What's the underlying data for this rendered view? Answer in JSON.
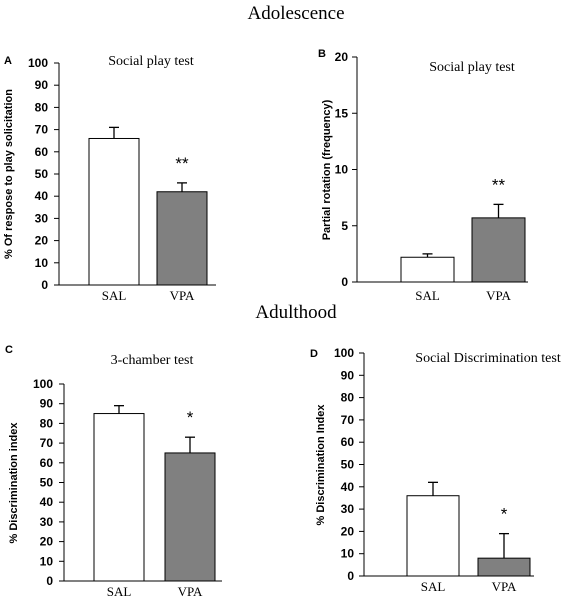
{
  "figure": {
    "section_titles": [
      "Adolescence",
      "Adulthood"
    ]
  },
  "colors": {
    "bar_outline": "#000000",
    "bar_fill_white": "#ffffff",
    "bar_fill_gray": "#808080"
  },
  "chart_data": [
    {
      "panel": "A",
      "type": "bar",
      "title": "Social play test",
      "ylabel": "% Of respose to play solicitation",
      "xlabel": "",
      "categories": [
        "SAL",
        "VPA"
      ],
      "values": [
        66,
        42
      ],
      "errors": [
        5,
        4
      ],
      "fill_colors": [
        "#ffffff",
        "#808080"
      ],
      "significance": [
        "",
        "**"
      ],
      "ylim": [
        0,
        100
      ],
      "yticks": [
        0,
        10,
        20,
        30,
        40,
        50,
        60,
        70,
        80,
        90,
        100
      ],
      "grid": false,
      "legend": "none"
    },
    {
      "panel": "B",
      "type": "bar",
      "title": "Social play test",
      "ylabel": "Partial rotation (frequency)",
      "xlabel": "",
      "categories": [
        "SAL",
        "VPA"
      ],
      "values": [
        2.2,
        5.7
      ],
      "errors": [
        0.3,
        1.2
      ],
      "fill_colors": [
        "#ffffff",
        "#808080"
      ],
      "significance": [
        "",
        "**"
      ],
      "ylim": [
        0,
        20
      ],
      "yticks": [
        0,
        5,
        10,
        15,
        20
      ],
      "grid": false,
      "legend": "none"
    },
    {
      "panel": "C",
      "type": "bar",
      "title": "3-chamber test",
      "ylabel": "% Discrimination index",
      "xlabel": "",
      "categories": [
        "SAL",
        "VPA"
      ],
      "values": [
        85,
        65
      ],
      "errors": [
        4,
        8
      ],
      "fill_colors": [
        "#ffffff",
        "#808080"
      ],
      "significance": [
        "",
        "*"
      ],
      "ylim": [
        0,
        100
      ],
      "yticks": [
        0,
        10,
        20,
        30,
        40,
        50,
        60,
        70,
        80,
        90,
        100
      ],
      "grid": false,
      "legend": "none"
    },
    {
      "panel": "D",
      "type": "bar",
      "title": "Social Discrimination test",
      "ylabel": "% Discrimination Index",
      "xlabel": "",
      "categories": [
        "SAL",
        "VPA"
      ],
      "values": [
        36,
        8
      ],
      "errors": [
        6,
        11
      ],
      "fill_colors": [
        "#ffffff",
        "#808080"
      ],
      "significance": [
        "",
        "*"
      ],
      "ylim": [
        0,
        100
      ],
      "yticks": [
        0,
        10,
        20,
        30,
        40,
        50,
        60,
        70,
        80,
        90,
        100
      ],
      "grid": false,
      "legend": "none"
    }
  ]
}
